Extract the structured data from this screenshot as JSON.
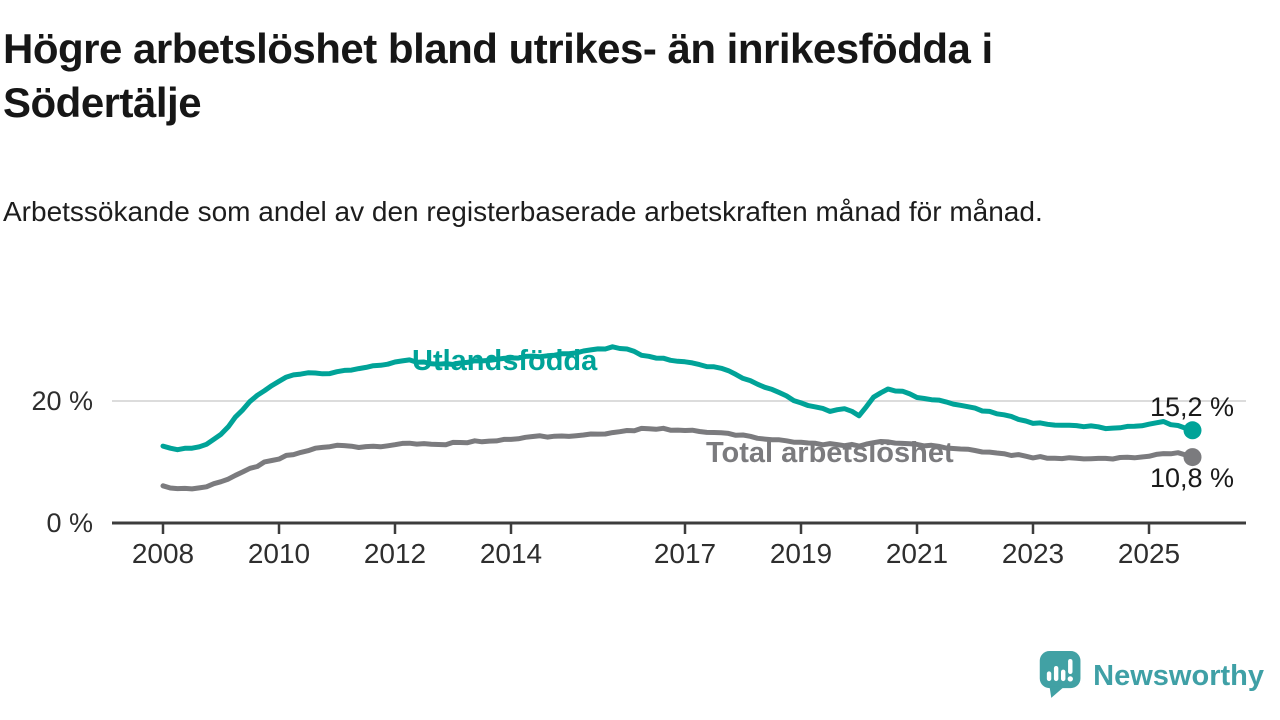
{
  "title": "Högre arbetslöshet bland utrikes- än inrikesfödda i Södertälje",
  "subtitle": "Arbetssökande som andel av den registerbaserade arbetskraften månad för månad.",
  "branding": {
    "brand_name": "Newsworthy",
    "logo_icon": "speech-bubble-bar-chart",
    "brand_color": "#3fa0a6"
  },
  "colors": {
    "foreign_born_line": "#00a398",
    "total_line": "#7b7b7e",
    "axis": "#3c3c3c",
    "gridline": "#dcdcdc",
    "tick_text": "#2e2e2e",
    "value_label_text": "#1a1a1a"
  },
  "chart_data": {
    "type": "line",
    "unit": "%",
    "x_start": 2008.0,
    "x_step": 0.25,
    "x_end": 2025.75,
    "xlim": [
      2007.1,
      2026.7
    ],
    "ylim": [
      0,
      31
    ],
    "grid": "single horizontal gridline at 20%",
    "legend_position": "inline-labels-on-lines",
    "x_ticks": [
      {
        "year": 2008,
        "label": "2008"
      },
      {
        "year": 2010,
        "label": "2010"
      },
      {
        "year": 2012,
        "label": "2012"
      },
      {
        "year": 2014,
        "label": "2014"
      },
      {
        "year": 2017,
        "label": "2017"
      },
      {
        "year": 2019,
        "label": "2019"
      },
      {
        "year": 2021,
        "label": "2021"
      },
      {
        "year": 2023,
        "label": "2023"
      },
      {
        "year": 2025,
        "label": "2025"
      }
    ],
    "y_ticks": [
      {
        "value": 20,
        "label": "20 %",
        "gridline": true
      },
      {
        "value": 0,
        "label": "0 %",
        "gridline": false
      }
    ],
    "series": [
      {
        "name": "Utlandsfödda",
        "color": "#00a398",
        "end_label": "15,2 %",
        "end_value": 15.2,
        "values": [
          12.6,
          12.1,
          12.3,
          12.9,
          14.5,
          17.3,
          19.8,
          21.8,
          23.3,
          24.3,
          24.6,
          24.4,
          24.7,
          25.2,
          25.6,
          25.9,
          26.4,
          26.7,
          26.3,
          25.9,
          26.1,
          26.4,
          26.6,
          26.8,
          27.0,
          27.2,
          27.4,
          27.6,
          27.8,
          28.2,
          28.5,
          28.8,
          28.4,
          27.6,
          27.1,
          26.7,
          26.4,
          25.9,
          25.5,
          25.1,
          23.8,
          22.8,
          21.9,
          20.8,
          19.6,
          18.9,
          18.4,
          18.8,
          17.6,
          20.6,
          21.9,
          21.5,
          20.7,
          20.3,
          19.9,
          19.3,
          18.8,
          18.2,
          17.6,
          17.1,
          16.4,
          16.2,
          16.0,
          15.9,
          15.8,
          15.6,
          15.7,
          15.9,
          16.2,
          16.6,
          15.9,
          15.2
        ]
      },
      {
        "name": "Total arbetslöshet",
        "color": "#7b7b7e",
        "end_label": "10,8 %",
        "end_value": 10.8,
        "values": [
          6.1,
          5.5,
          5.7,
          6.0,
          6.8,
          7.8,
          8.9,
          9.9,
          10.6,
          11.3,
          11.9,
          12.4,
          12.7,
          12.5,
          12.4,
          12.6,
          12.9,
          13.1,
          13.0,
          12.8,
          13.1,
          13.3,
          13.4,
          13.5,
          13.7,
          14.0,
          14.2,
          14.1,
          14.3,
          14.5,
          14.6,
          14.8,
          15.1,
          15.4,
          15.5,
          15.3,
          15.2,
          15.0,
          14.8,
          14.6,
          14.3,
          14.0,
          13.7,
          13.5,
          13.2,
          13.0,
          12.9,
          12.8,
          12.7,
          13.2,
          13.3,
          13.0,
          12.8,
          12.6,
          12.4,
          12.2,
          11.9,
          11.6,
          11.3,
          11.1,
          10.8,
          10.7,
          10.6,
          10.6,
          10.5,
          10.5,
          10.6,
          10.8,
          11.0,
          11.4,
          11.5,
          10.8
        ]
      }
    ]
  }
}
